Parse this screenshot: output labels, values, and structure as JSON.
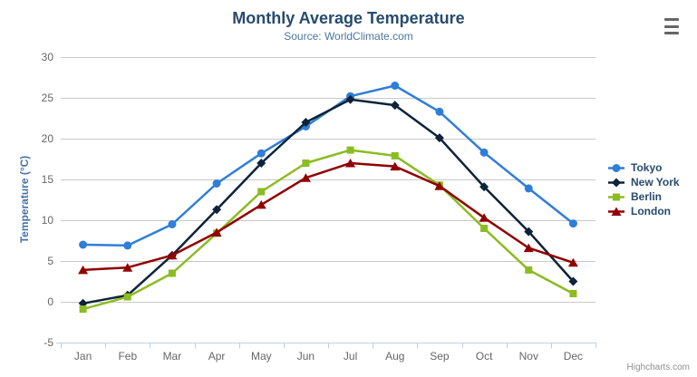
{
  "header": {
    "title": "Monthly Average Temperature",
    "subtitle": "Source: WorldClimate.com"
  },
  "y_axis": {
    "title": "Temperature (°C)"
  },
  "credits": {
    "label": "Highcharts.com"
  },
  "export_menu": {
    "icon": "hamburger-icon"
  },
  "colors": {
    "title_text": "#274b6d",
    "subtitle_text": "#4d759e",
    "y_axis_title_text": "#4572a7",
    "axis_label_text": "#666666",
    "grid_line": "#c8c8c8",
    "axis_line": "#c0d0e0",
    "legend_text": "#274b6d",
    "credits_text": "#909090",
    "menu_icon": "#666666"
  },
  "chart_data": {
    "type": "line",
    "title": "Monthly Average Temperature",
    "subtitle": "Source: WorldClimate.com",
    "xlabel": "",
    "ylabel": "Temperature (°C)",
    "categories": [
      "Jan",
      "Feb",
      "Mar",
      "Apr",
      "May",
      "Jun",
      "Jul",
      "Aug",
      "Sep",
      "Oct",
      "Nov",
      "Dec"
    ],
    "ylim": [
      -5,
      30
    ],
    "ytick_step": 5,
    "grid": true,
    "legend_position": "right",
    "series": [
      {
        "name": "Tokyo",
        "color": "#2f7ed8",
        "marker": "circle",
        "values": [
          7.0,
          6.9,
          9.5,
          14.5,
          18.2,
          21.5,
          25.2,
          26.5,
          23.3,
          18.3,
          13.9,
          9.6
        ]
      },
      {
        "name": "New York",
        "color": "#0d233a",
        "marker": "diamond",
        "values": [
          -0.2,
          0.8,
          5.7,
          11.3,
          17.0,
          22.0,
          24.8,
          24.1,
          20.1,
          14.1,
          8.6,
          2.5
        ]
      },
      {
        "name": "Berlin",
        "color": "#8bbc21",
        "marker": "square",
        "values": [
          -0.9,
          0.6,
          3.5,
          8.4,
          13.5,
          17.0,
          18.6,
          17.9,
          14.3,
          9.0,
          3.9,
          1.0
        ]
      },
      {
        "name": "London",
        "color": "#910000",
        "marker": "triangle",
        "values": [
          3.9,
          4.2,
          5.7,
          8.5,
          11.9,
          15.2,
          17.0,
          16.6,
          14.2,
          10.3,
          6.6,
          4.8
        ]
      }
    ]
  }
}
